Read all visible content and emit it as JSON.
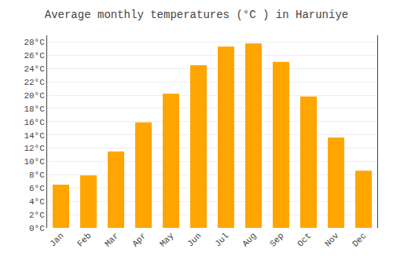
{
  "chart_data": {
    "type": "bar",
    "title": "Average monthly temperatures (°C ) in Haruniye",
    "categories": [
      "Jan",
      "Feb",
      "Mar",
      "Apr",
      "May",
      "Jun",
      "Jul",
      "Aug",
      "Sep",
      "Oct",
      "Nov",
      "Dec"
    ],
    "values": [
      6.5,
      7.9,
      11.5,
      15.9,
      20.2,
      24.5,
      27.3,
      27.8,
      25.0,
      19.8,
      13.6,
      8.6
    ],
    "color": "#FFA500",
    "ylim": [
      0,
      29
    ],
    "yticks": [
      {
        "value": 0,
        "label": "0°C"
      },
      {
        "value": 2,
        "label": "2°C"
      },
      {
        "value": 4,
        "label": "4°C"
      },
      {
        "value": 6,
        "label": "6°C"
      },
      {
        "value": 8,
        "label": "8°C"
      },
      {
        "value": 10,
        "label": "10°C"
      },
      {
        "value": 12,
        "label": "12°C"
      },
      {
        "value": 14,
        "label": "14°C"
      },
      {
        "value": 16,
        "label": "16°C"
      },
      {
        "value": 18,
        "label": "18°C"
      },
      {
        "value": 20,
        "label": "20°C"
      },
      {
        "value": 22,
        "label": "22°C"
      },
      {
        "value": 24,
        "label": "24°C"
      },
      {
        "value": 26,
        "label": "26°C"
      },
      {
        "value": 28,
        "label": "28°C"
      }
    ],
    "grid": true
  }
}
